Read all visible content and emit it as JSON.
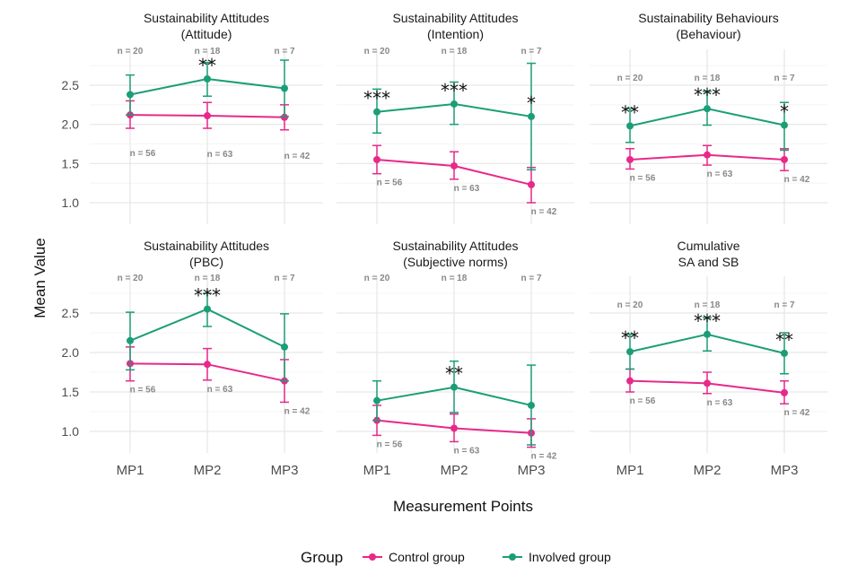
{
  "chart_data": {
    "type": "line",
    "xlabel": "Measurement Points",
    "ylabel": "Mean Value",
    "categories": [
      "MP1",
      "MP2",
      "MP3"
    ],
    "ylim": [
      0.75,
      2.8
    ],
    "yticks": [
      "1.0",
      "1.5",
      "2.0",
      "2.5"
    ],
    "grid": true,
    "legend": {
      "title": "Group",
      "placement": "bottom",
      "entries": [
        {
          "name": "Control group",
          "color": "#e7298a"
        },
        {
          "name": "Involved group",
          "color": "#1b9e77"
        }
      ]
    },
    "panels": [
      {
        "title_line1": "Sustainability Attitudes",
        "title_line2": "(Attitude)",
        "series": [
          {
            "name": "Control group",
            "values": [
              2.12,
              2.11,
              2.09
            ],
            "lower": [
              1.95,
              1.95,
              1.93
            ],
            "upper": [
              2.3,
              2.28,
              2.25
            ],
            "n": [
              "n = 56",
              "n = 63",
              "n = 42"
            ]
          },
          {
            "name": "Involved group",
            "values": [
              2.38,
              2.58,
              2.46
            ],
            "lower": [
              2.12,
              2.36,
              2.1
            ],
            "upper": [
              2.63,
              2.79,
              2.82
            ],
            "n": [
              "n = 20",
              "n = 18",
              "n = 7"
            ]
          }
        ],
        "stars": [
          "",
          "**",
          ""
        ]
      },
      {
        "title_line1": "Sustainability Attitudes",
        "title_line2": "(Intention)",
        "series": [
          {
            "name": "Control group",
            "values": [
              1.55,
              1.47,
              1.23
            ],
            "lower": [
              1.37,
              1.3,
              1.0
            ],
            "upper": [
              1.73,
              1.65,
              1.45
            ],
            "n": [
              "n = 56",
              "n = 63",
              "n = 42"
            ]
          },
          {
            "name": "Involved group",
            "values": [
              2.16,
              2.26,
              2.1
            ],
            "lower": [
              1.89,
              2.0,
              1.42
            ],
            "upper": [
              2.45,
              2.54,
              2.78
            ],
            "n": [
              "n = 20",
              "n = 18",
              "n = 7"
            ]
          }
        ],
        "stars": [
          "***",
          "***",
          "*"
        ]
      },
      {
        "title_line1": "Sustainability Behaviours",
        "title_line2": "(Behaviour)",
        "series": [
          {
            "name": "Control group",
            "values": [
              1.55,
              1.61,
              1.55
            ],
            "lower": [
              1.43,
              1.48,
              1.41
            ],
            "upper": [
              1.69,
              1.73,
              1.69
            ],
            "n": [
              "n = 56",
              "n = 63",
              "n = 42"
            ]
          },
          {
            "name": "Involved group",
            "values": [
              1.98,
              2.2,
              1.99
            ],
            "lower": [
              1.77,
              1.99,
              1.67
            ],
            "upper": [
              2.2,
              2.42,
              2.28
            ],
            "n": [
              "n = 20",
              "n = 18",
              "n = 7"
            ]
          }
        ],
        "stars": [
          "**",
          "***",
          "*"
        ]
      },
      {
        "title_line1": "Sustainability Attitudes",
        "title_line2": "(PBC)",
        "series": [
          {
            "name": "Control group",
            "values": [
              1.86,
              1.85,
              1.64
            ],
            "lower": [
              1.64,
              1.65,
              1.37
            ],
            "upper": [
              2.07,
              2.05,
              1.91
            ],
            "n": [
              "n = 56",
              "n = 63",
              "n = 42"
            ]
          },
          {
            "name": "Involved group",
            "values": [
              2.15,
              2.55,
              2.07
            ],
            "lower": [
              1.78,
              2.33,
              1.64
            ],
            "upper": [
              2.51,
              2.75,
              2.49
            ],
            "n": [
              "n = 20",
              "n = 18",
              "n = 7"
            ]
          }
        ],
        "stars": [
          "",
          "***",
          ""
        ]
      },
      {
        "title_line1": "Sustainability Attitudes",
        "title_line2": "(Subjective norms)",
        "series": [
          {
            "name": "Control group",
            "values": [
              1.14,
              1.04,
              0.98
            ],
            "lower": [
              0.95,
              0.87,
              0.8
            ],
            "upper": [
              1.33,
              1.22,
              1.16
            ],
            "n": [
              "n = 56",
              "n = 63",
              "n = 42"
            ]
          },
          {
            "name": "Involved group",
            "values": [
              1.39,
              1.56,
              1.33
            ],
            "lower": [
              1.14,
              1.24,
              0.83
            ],
            "upper": [
              1.64,
              1.89,
              1.84
            ],
            "n": [
              "n = 20",
              "n = 18",
              "n = 7"
            ]
          }
        ],
        "stars": [
          "",
          "**",
          ""
        ]
      },
      {
        "title_line1": "Cumulative",
        "title_line2": "SA and SB",
        "series": [
          {
            "name": "Control group",
            "values": [
              1.64,
              1.61,
              1.49
            ],
            "lower": [
              1.5,
              1.48,
              1.35
            ],
            "upper": [
              1.79,
              1.75,
              1.64
            ],
            "n": [
              "n = 56",
              "n = 63",
              "n = 42"
            ]
          },
          {
            "name": "Involved group",
            "values": [
              2.01,
              2.23,
              1.99
            ],
            "lower": [
              1.79,
              2.02,
              1.73
            ],
            "upper": [
              2.23,
              2.44,
              2.25
            ],
            "n": [
              "n = 20",
              "n = 18",
              "n = 7"
            ]
          }
        ],
        "stars": [
          "**",
          "***",
          "**"
        ]
      }
    ]
  }
}
